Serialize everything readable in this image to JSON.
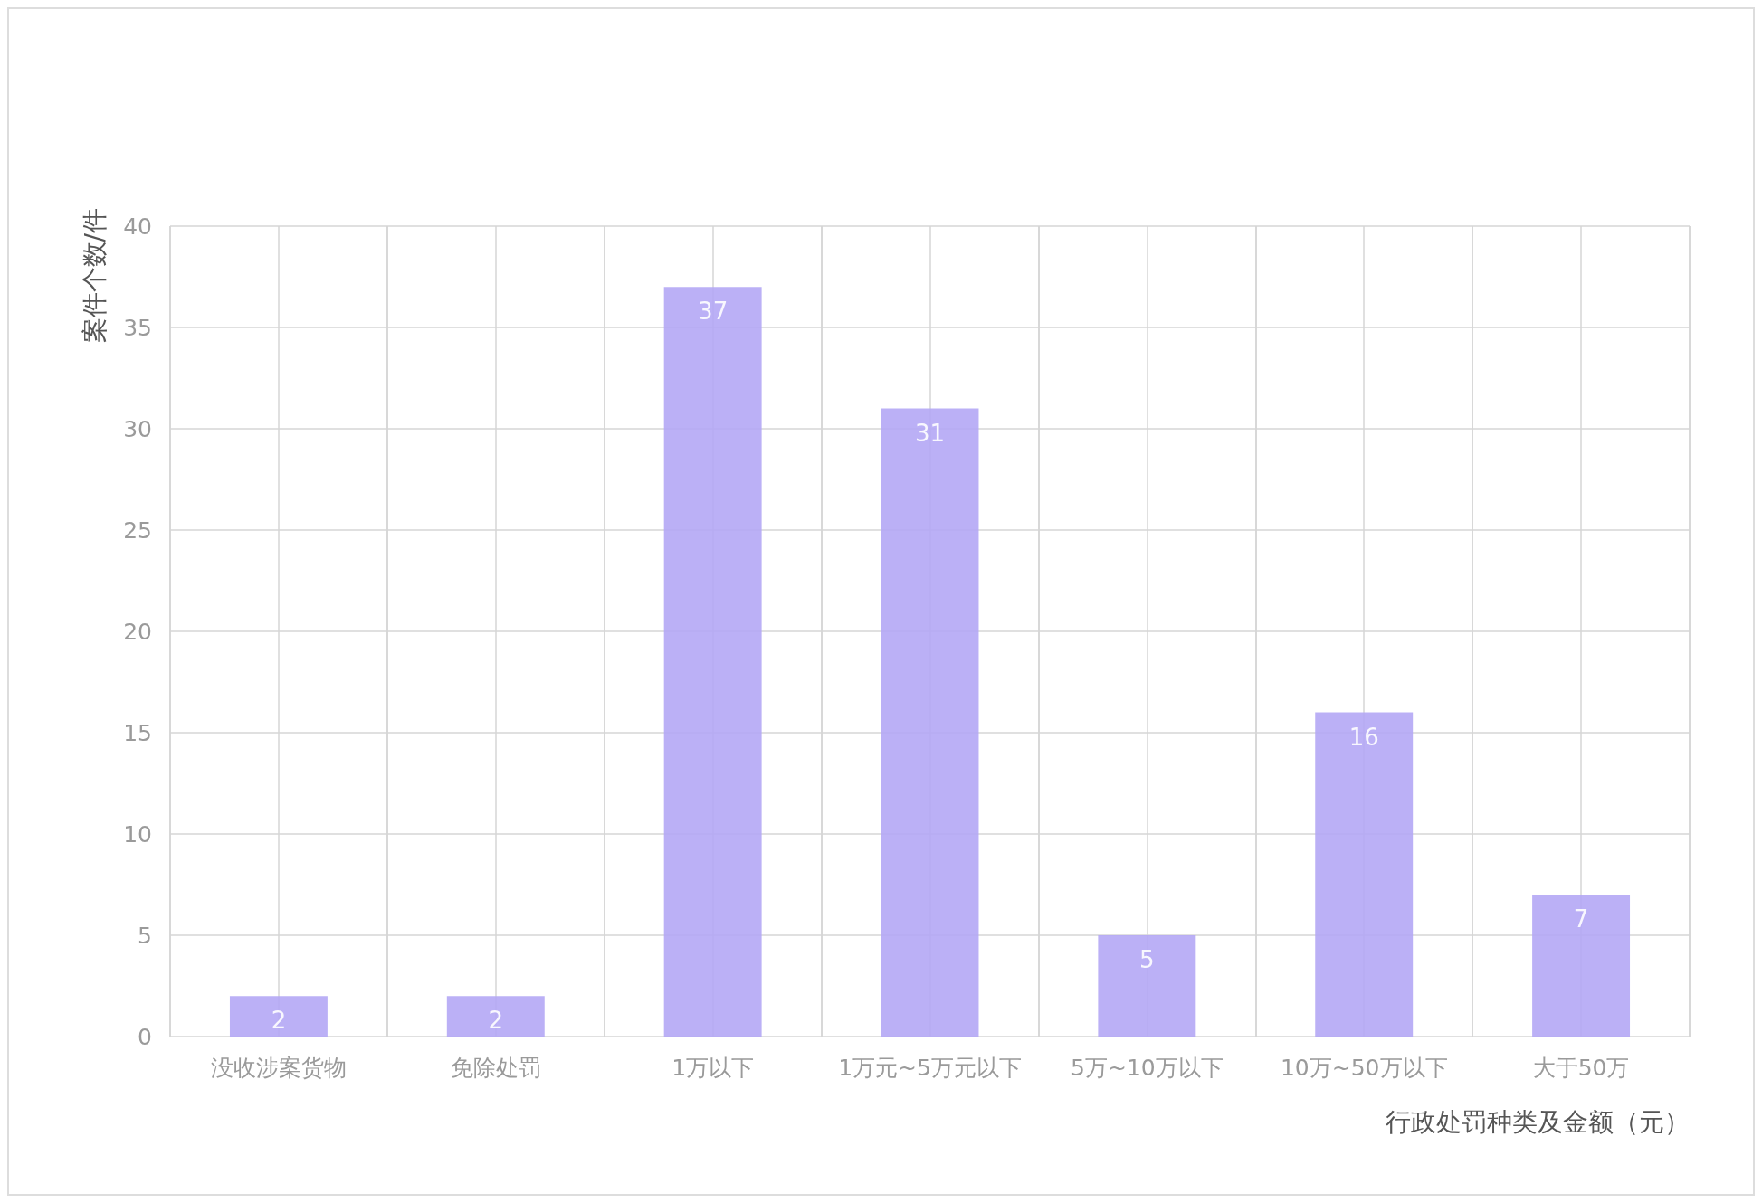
{
  "chart_data": {
    "type": "bar",
    "xlabel": "行政处罚种类及金额（元）",
    "ylabel": "案件个数/件",
    "categories": [
      "没收涉案货物",
      "免除处罚",
      "1万以下",
      "1万元~5万元以下",
      "5万~10万以下",
      "10万~50万以下",
      "大于50万"
    ],
    "values": [
      2,
      2,
      37,
      31,
      5,
      16,
      7
    ],
    "color": "#b4a7f5",
    "ylim": [
      0,
      40
    ],
    "yticks": [
      0,
      5,
      10,
      15,
      20,
      25,
      30,
      35,
      40
    ],
    "grid": true,
    "data_labels": true
  }
}
